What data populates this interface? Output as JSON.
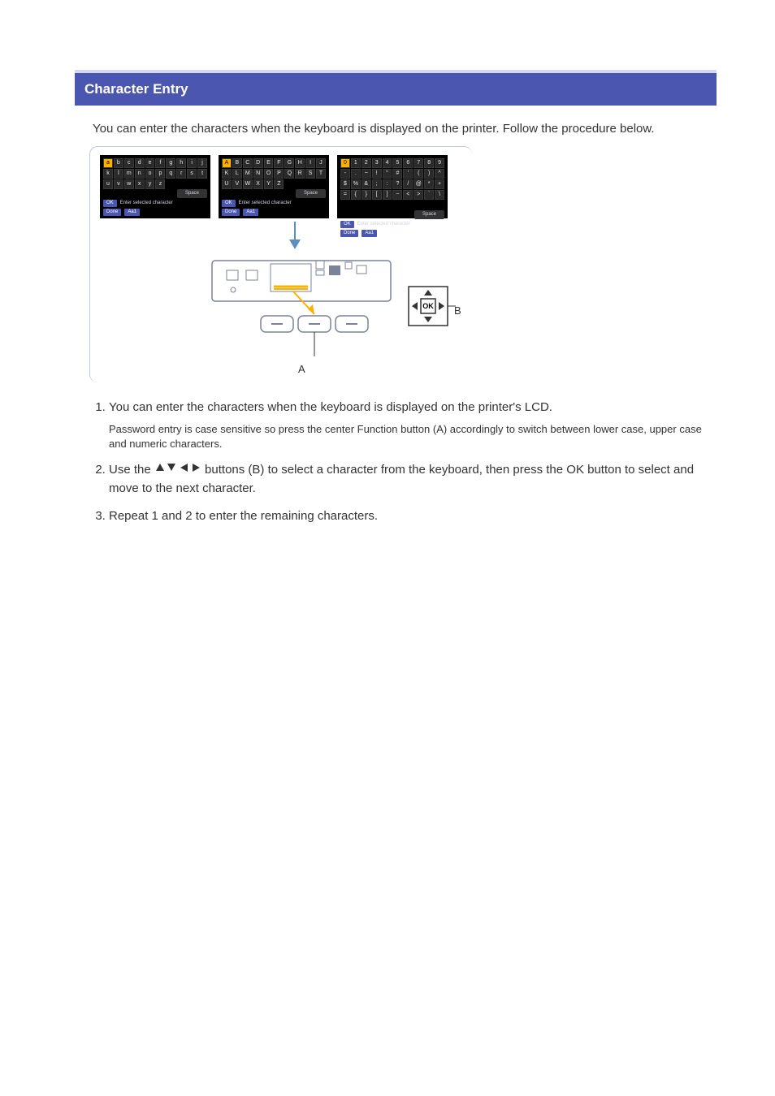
{
  "title": "Character Entry",
  "intro": "You can enter the characters when the keyboard is displayed on the printer. Follow the procedure below.",
  "keyboards": {
    "lower": [
      "a",
      "b",
      "c",
      "d",
      "e",
      "f",
      "g",
      "h",
      "i",
      "j",
      "k",
      "l",
      "m",
      "n",
      "o",
      "p",
      "q",
      "r",
      "s",
      "t",
      "u",
      "v",
      "w",
      "x",
      "y",
      "z"
    ],
    "upper": [
      "A",
      "B",
      "C",
      "D",
      "E",
      "F",
      "G",
      "H",
      "I",
      "J",
      "K",
      "L",
      "M",
      "N",
      "O",
      "P",
      "Q",
      "R",
      "S",
      "T",
      "U",
      "V",
      "W",
      "X",
      "Y",
      "Z"
    ],
    "symbols": [
      "0",
      "1",
      "2",
      "3",
      "4",
      "5",
      "6",
      "7",
      "8",
      "9",
      "-",
      ".",
      "~",
      "!",
      "\"",
      "#",
      "'",
      "(",
      ")",
      "^",
      "$",
      "%",
      "&",
      ";",
      ":",
      "?",
      "/",
      "@",
      "*",
      "+",
      "=",
      "{",
      "}",
      "[",
      "]",
      "~",
      "<",
      ">",
      "`",
      "\\"
    ],
    "footer_ok": "OK",
    "footer_enter": "Enter selected character",
    "footer_done": "Done",
    "footer_mode": "Aa1",
    "footer_space": "Space"
  },
  "labels": {
    "A": "A",
    "B": "B",
    "OK": "OK"
  },
  "steps": {
    "s1": "You can enter the characters when the keyboard is displayed on the printer's LCD.",
    "s1_note": "Password entry is case sensitive so press the center Function button (A) accordingly to switch between lower case, upper case and numeric characters.",
    "s2a": "Use the ",
    "s2b": " buttons (B) to select a character from the keyboard, then press the OK button to select and move to the next character.",
    "s3": "Repeat 1 and 2 to enter the remaining characters."
  },
  "colors": {
    "title_bg": "#4a56b0",
    "title_border": "#d6d8f3",
    "arrow_fill": "#5a8fc0",
    "device_line": "#7a8399",
    "highlight": "#ffb000"
  }
}
